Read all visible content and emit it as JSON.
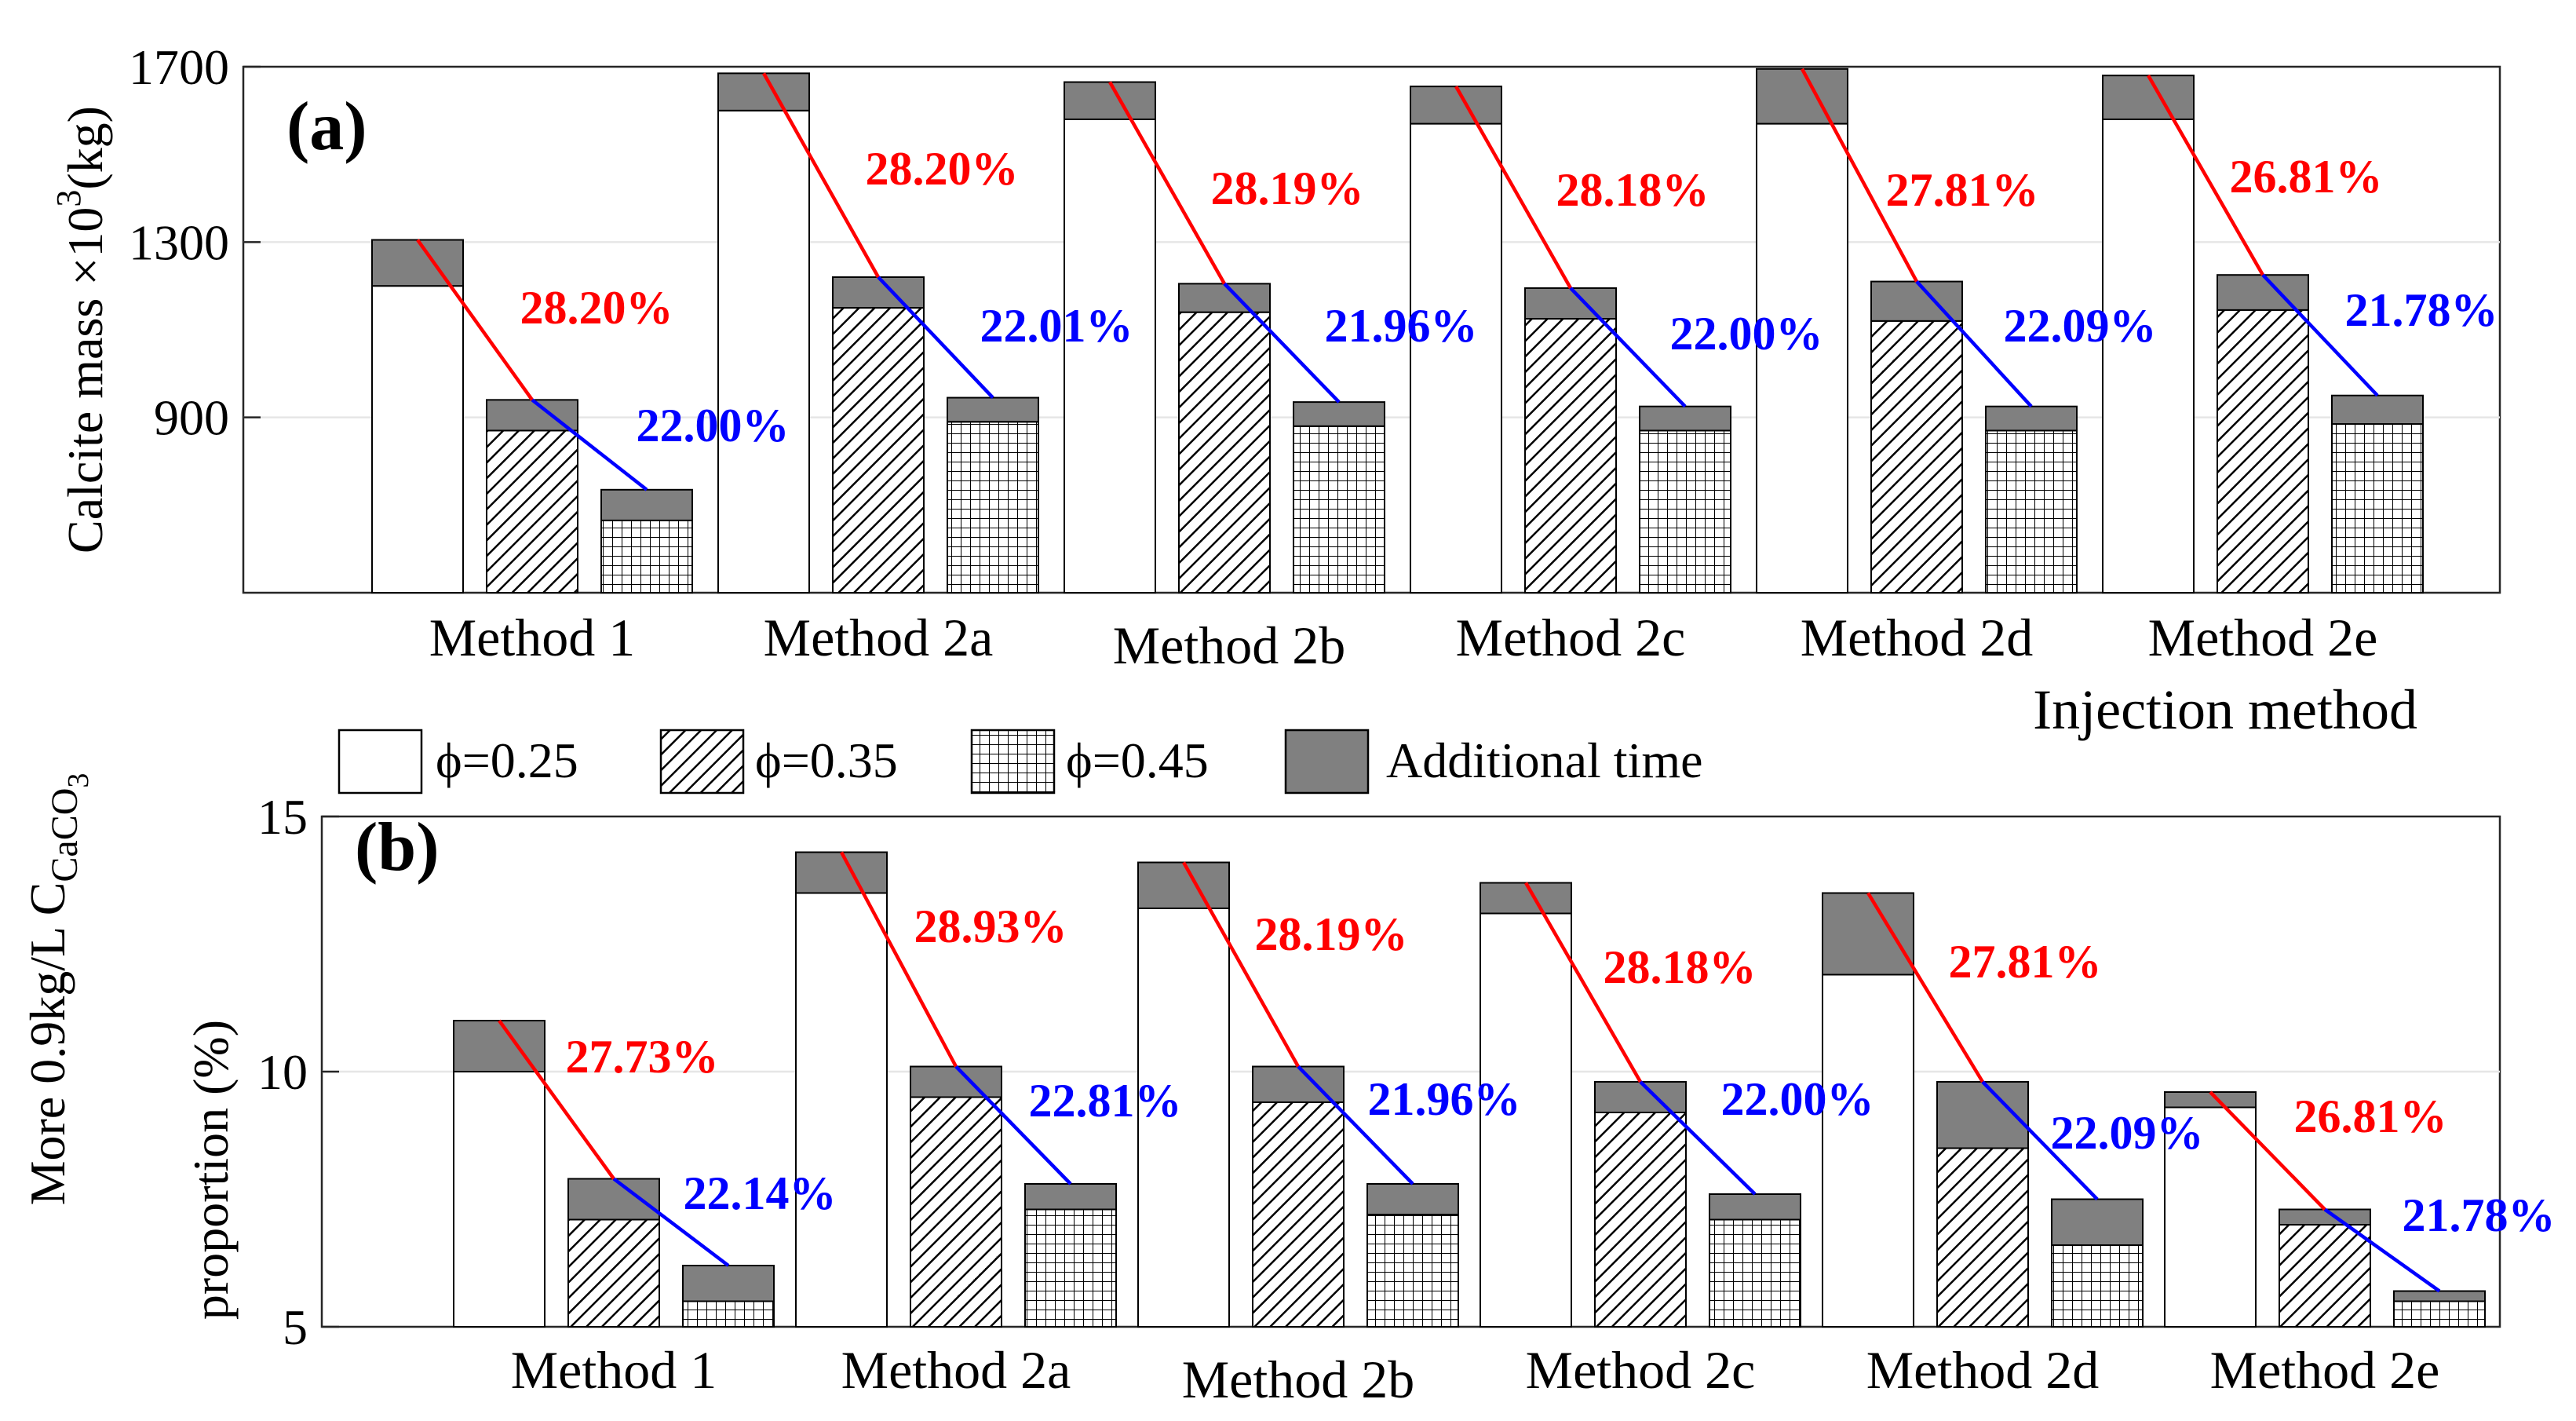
{
  "colors": {
    "additional": "#808080",
    "red": "#ff0000",
    "blue": "#0000ff",
    "grid": "#e6e6e6",
    "axis": "#262626"
  },
  "legend": {
    "phi025": "ϕ=0.25",
    "phi035": "ϕ=0.35",
    "phi045": "ϕ=0.45",
    "additional": "Additional time"
  },
  "chart_data": [
    {
      "type": "bar",
      "panel_label": "(a)",
      "ylabel": "Calcite mass ×10",
      "ylabel_sup": "3",
      "ylabel_unit": "(kg)",
      "xlabel": "Injection method",
      "ylim": [
        500,
        1700
      ],
      "yticks": [
        "900",
        "1300",
        "1700"
      ],
      "ytick_values": [
        900,
        1300,
        1700
      ],
      "grid": "horizontal",
      "categories": [
        "Method 1",
        "Method 2a",
        "Method 2b",
        "Method 2c",
        "Method 2d",
        "Method 2e"
      ],
      "series": [
        {
          "name": "ϕ=0.25",
          "base": [
            1200,
            1600,
            1580,
            1570,
            1570,
            1580
          ],
          "additional": [
            105,
            85,
            85,
            85,
            125,
            100
          ]
        },
        {
          "name": "ϕ=0.35",
          "base": [
            870,
            1150,
            1140,
            1125,
            1120,
            1145
          ],
          "additional": [
            70,
            70,
            65,
            70,
            90,
            80
          ]
        },
        {
          "name": "ϕ=0.45",
          "base": [
            665,
            890,
            880,
            870,
            870,
            885
          ],
          "additional": [
            70,
            55,
            55,
            55,
            55,
            65
          ]
        }
      ],
      "red_labels": [
        "28.20%",
        "28.20%",
        "28.19%",
        "28.18%",
        "27.81%",
        "26.81%"
      ],
      "blue_labels": [
        "22.00%",
        "22.01%",
        "21.96%",
        "22.00%",
        "22.09%",
        "21.78%"
      ]
    },
    {
      "type": "bar",
      "panel_label": "(b)",
      "ylabel_line1": "More 0.9kg/L C",
      "ylabel_sub": "CaCO",
      "ylabel_sub2": "3",
      "ylabel_line2": "proportion (%)",
      "ylim": [
        5,
        15
      ],
      "yticks": [
        "5",
        "10",
        "15"
      ],
      "ytick_values": [
        5,
        10,
        15
      ],
      "grid": "horizontal",
      "categories": [
        "Method 1",
        "Method 2a",
        "Method 2b",
        "Method 2c",
        "Method 2d",
        "Method 2e"
      ],
      "series": [
        {
          "name": "ϕ=0.25",
          "base": [
            10.0,
            13.5,
            13.2,
            13.1,
            11.9,
            9.3
          ],
          "additional": [
            1.0,
            0.8,
            0.9,
            0.6,
            1.6,
            0.3
          ]
        },
        {
          "name": "ϕ=0.35",
          "base": [
            7.1,
            9.5,
            9.4,
            9.2,
            8.5,
            7.0
          ],
          "additional": [
            0.8,
            0.6,
            0.7,
            0.6,
            1.3,
            0.3
          ]
        },
        {
          "name": "ϕ=0.45",
          "base": [
            5.5,
            7.3,
            7.2,
            7.1,
            6.6,
            5.5
          ],
          "additional": [
            0.7,
            0.5,
            0.6,
            0.5,
            0.9,
            0.2
          ]
        }
      ],
      "red_labels": [
        "27.73%",
        "28.93%",
        "28.19%",
        "28.18%",
        "27.81%",
        "26.81%"
      ],
      "blue_labels": [
        "22.14%",
        "22.81%",
        "21.96%",
        "22.00%",
        "22.09%",
        "21.78%"
      ]
    }
  ]
}
